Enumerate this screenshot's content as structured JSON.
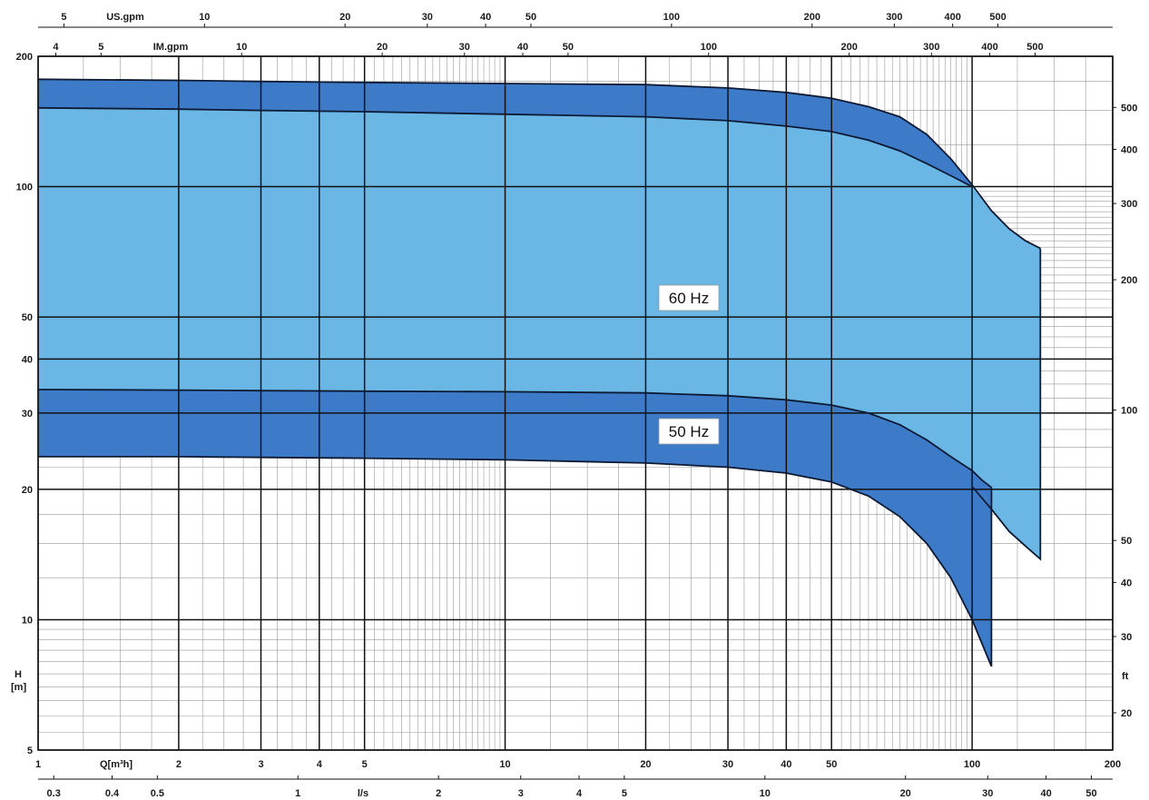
{
  "chart_data": {
    "type": "area",
    "x_scale": "log",
    "y_scale": "log",
    "xlim": [
      1,
      200
    ],
    "ylim": [
      5,
      200
    ],
    "grid": true,
    "colors": {
      "outer_band": "#3d7bc9",
      "inner_area": "#6ab7e6",
      "curve": "#0d1a33",
      "grid_major": "#111111",
      "grid_minor": "#9a9a9a"
    },
    "axes": {
      "bottom_q_m3h": {
        "label": "Q[m³h]",
        "ticks": [
          "1",
          "2",
          "3",
          "4",
          "5",
          "10",
          "20",
          "30",
          "40",
          "50",
          "100",
          "200"
        ],
        "tick_values": [
          1,
          2,
          3,
          4,
          5,
          10,
          20,
          30,
          40,
          50,
          100,
          200
        ]
      },
      "bottom_ls": {
        "label": "l/s",
        "ticks": [
          "0.3",
          "0.4",
          "0.5",
          "1",
          "2",
          "3",
          "4",
          "5",
          "10",
          "20",
          "30",
          "40",
          "50"
        ],
        "tick_values": [
          0.3,
          0.4,
          0.5,
          1,
          2,
          3,
          4,
          5,
          10,
          20,
          30,
          40,
          50
        ]
      },
      "top_us_gpm": {
        "label": "US.gpm",
        "ticks": [
          "5",
          "10",
          "20",
          "30",
          "40",
          "50",
          "100",
          "200",
          "300",
          "400",
          "500"
        ],
        "tick_values": [
          5,
          10,
          20,
          30,
          40,
          50,
          100,
          200,
          300,
          400,
          500
        ]
      },
      "top_im_gpm": {
        "label": "IM.gpm",
        "ticks": [
          "4",
          "5",
          "10",
          "20",
          "30",
          "40",
          "50",
          "100",
          "200",
          "300",
          "400",
          "500"
        ],
        "tick_values": [
          4,
          5,
          10,
          20,
          30,
          40,
          50,
          100,
          200,
          300,
          400,
          500
        ]
      },
      "left_h_m": {
        "label": "H",
        "unit": "[m]",
        "ticks": [
          "5",
          "10",
          "20",
          "30",
          "40",
          "50",
          "100",
          "200"
        ],
        "tick_values": [
          5,
          10,
          20,
          30,
          40,
          50,
          100,
          200
        ]
      },
      "right_ft": {
        "label": "ft",
        "ticks": [
          "20",
          "30",
          "40",
          "50",
          "100",
          "200",
          "300",
          "400",
          "500"
        ],
        "tick_values": [
          20,
          30,
          40,
          50,
          100,
          200,
          300,
          400,
          500
        ]
      }
    },
    "series": [
      {
        "name": "60 Hz",
        "upper": {
          "x": [
            1,
            2,
            3,
            5,
            10,
            20,
            30,
            40,
            50,
            60,
            70,
            80,
            90,
            100,
            110,
            120,
            130,
            140
          ],
          "y": [
            177,
            176,
            175,
            174,
            173,
            172,
            169,
            165,
            160,
            153,
            145,
            132,
            116,
            101,
            88,
            80,
            75,
            72
          ]
        },
        "lower": {
          "x": [
            1,
            2,
            3,
            5,
            10,
            20,
            30,
            40,
            50,
            60,
            70,
            80,
            90,
            100
          ],
          "y": [
            152,
            151,
            150,
            149,
            147,
            145,
            142,
            138,
            134,
            128,
            121,
            113,
            106,
            100
          ]
        },
        "end": {
          "x": [
            140,
            140
          ],
          "y": [
            72,
            13.8
          ]
        },
        "bottom_edge": {
          "x": [
            100,
            110,
            120,
            130,
            140
          ],
          "y": [
            20.3,
            18,
            16,
            14.8,
            13.8
          ]
        }
      },
      {
        "name": "50 Hz",
        "upper": {
          "x": [
            1,
            2,
            3,
            5,
            10,
            20,
            30,
            40,
            50,
            60,
            70,
            80,
            90,
            100,
            105,
            110
          ],
          "y": [
            34,
            33.9,
            33.8,
            33.7,
            33.6,
            33.4,
            32.9,
            32.2,
            31.3,
            30,
            28.2,
            26,
            23.8,
            22.1,
            21,
            20.2
          ]
        },
        "lower": {
          "x": [
            1,
            2,
            3,
            5,
            10,
            20,
            30,
            40,
            50,
            60,
            70,
            80,
            90,
            100,
            110
          ],
          "y": [
            23.8,
            23.8,
            23.7,
            23.6,
            23.4,
            23,
            22.5,
            21.8,
            20.8,
            19.3,
            17.3,
            15,
            12.5,
            10,
            7.8
          ]
        },
        "end": {
          "x": [
            110,
            110
          ],
          "y": [
            20.2,
            7.8
          ]
        }
      }
    ],
    "annotations": [
      "60 Hz",
      "50 Hz"
    ]
  }
}
